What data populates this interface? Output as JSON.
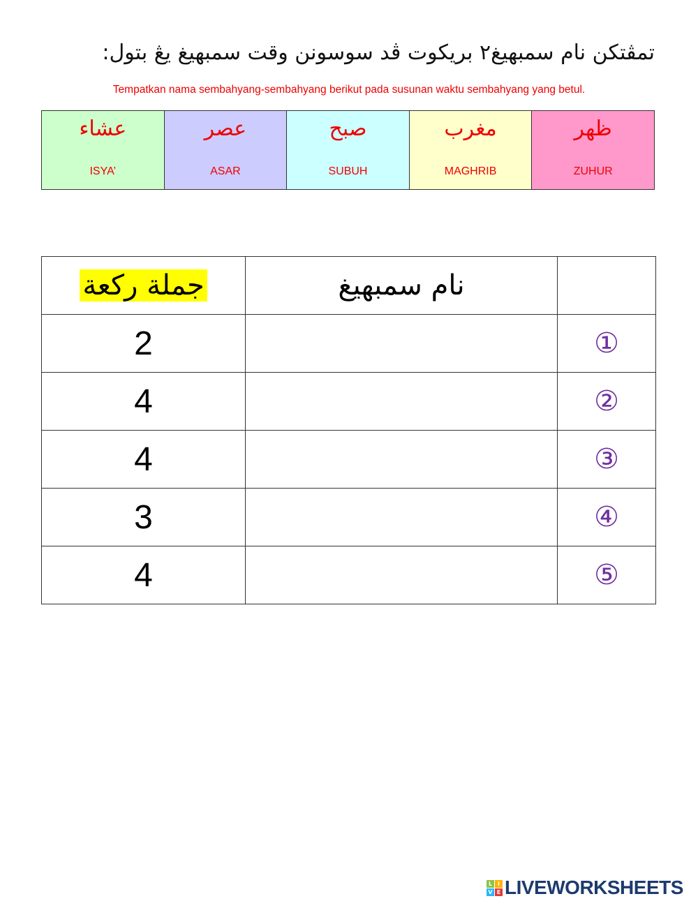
{
  "header": {
    "title_jawi": "تمڤتكن نام سمبهيغ٢ بريكوت ڤد سوسونن وقت سمبهيغ يڠ بتول:",
    "subtitle": "Tempatkan nama sembahyang-sembahyang berikut pada susunan waktu sembahyang yang betul."
  },
  "prayer_cards": [
    {
      "arabic": "عشاء",
      "latin": "ISYA’",
      "color": "#ccffcc"
    },
    {
      "arabic": "عصر",
      "latin": "ASAR",
      "color": "#ccccff"
    },
    {
      "arabic": "صبح",
      "latin": "SUBUH",
      "color": "#ccffff"
    },
    {
      "arabic": "مغرب",
      "latin": "MAGHRIB",
      "color": "#ffffcc"
    },
    {
      "arabic": "ظهر",
      "latin": "ZUHUR",
      "color": "#ff99cc"
    }
  ],
  "table": {
    "headers": {
      "rakaat": "جملة ركعة",
      "name": "نام سمبهيغ",
      "order": ""
    },
    "rows": [
      {
        "rakaat": "2",
        "name": "",
        "order": "①"
      },
      {
        "rakaat": "4",
        "name": "",
        "order": "②"
      },
      {
        "rakaat": "4",
        "name": "",
        "order": "③"
      },
      {
        "rakaat": "3",
        "name": "",
        "order": "④"
      },
      {
        "rakaat": "4",
        "name": "",
        "order": "⑤"
      }
    ]
  },
  "footer": {
    "logo_text": "LIVEWORKSHEETS",
    "logo_letters": [
      "L",
      "I",
      "V",
      "E"
    ]
  }
}
